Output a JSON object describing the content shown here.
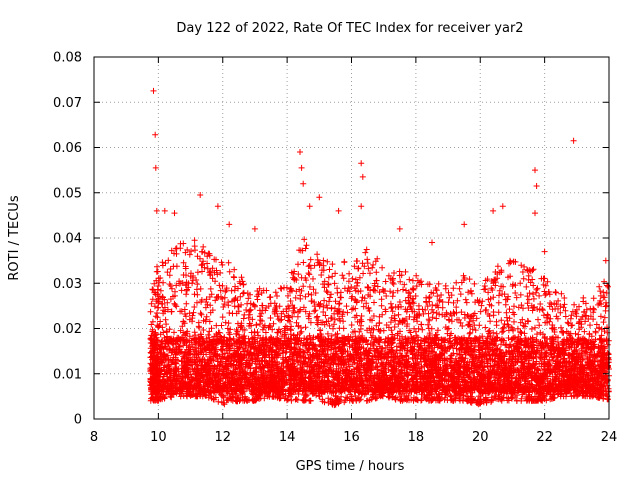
{
  "chart_data": {
    "type": "scatter",
    "title": "Day 122 of 2022, Rate Of TEC Index for receiver yar2",
    "xlabel": "GPS time / hours",
    "ylabel": "ROTI / TECUs",
    "xlim": [
      8,
      24
    ],
    "ylim": [
      0,
      0.08
    ],
    "x_ticks": [
      "8",
      "10",
      "12",
      "14",
      "16",
      "18",
      "20",
      "22",
      "24"
    ],
    "y_ticks": [
      "0",
      "0.01",
      "0.02",
      "0.03",
      "0.04",
      "0.05",
      "0.06",
      "0.07",
      "0.08"
    ],
    "grid": true,
    "marker": "+",
    "color": "#ff0000",
    "series": [
      {
        "name": "ROTI",
        "points": [
          [
            9.85,
            0.0725
          ],
          [
            9.9,
            0.0628
          ],
          [
            9.92,
            0.0555
          ],
          [
            9.95,
            0.046
          ],
          [
            10.2,
            0.046
          ],
          [
            10.5,
            0.0455
          ],
          [
            11.3,
            0.0495
          ],
          [
            11.85,
            0.047
          ],
          [
            12.2,
            0.043
          ],
          [
            13.0,
            0.042
          ],
          [
            14.4,
            0.059
          ],
          [
            14.45,
            0.0555
          ],
          [
            14.5,
            0.052
          ],
          [
            14.7,
            0.047
          ],
          [
            15.0,
            0.049
          ],
          [
            15.6,
            0.046
          ],
          [
            16.3,
            0.0565
          ],
          [
            16.35,
            0.0535
          ],
          [
            16.3,
            0.047
          ],
          [
            17.5,
            0.042
          ],
          [
            18.5,
            0.039
          ],
          [
            19.5,
            0.043
          ],
          [
            20.4,
            0.046
          ],
          [
            20.7,
            0.047
          ],
          [
            21.7,
            0.055
          ],
          [
            21.75,
            0.0515
          ],
          [
            21.7,
            0.0455
          ],
          [
            22.9,
            0.0615
          ],
          [
            22.0,
            0.037
          ],
          [
            23.9,
            0.035
          ]
        ],
        "density_envelope": [
          [
            9.75,
            0.004,
            0.028
          ],
          [
            10.0,
            0.004,
            0.035
          ],
          [
            10.5,
            0.005,
            0.038
          ],
          [
            11.0,
            0.005,
            0.04
          ],
          [
            11.5,
            0.005,
            0.038
          ],
          [
            12.0,
            0.003,
            0.036
          ],
          [
            12.5,
            0.004,
            0.032
          ],
          [
            13.0,
            0.004,
            0.03
          ],
          [
            13.5,
            0.005,
            0.028
          ],
          [
            14.0,
            0.004,
            0.03
          ],
          [
            14.5,
            0.004,
            0.04
          ],
          [
            15.0,
            0.004,
            0.036
          ],
          [
            15.5,
            0.003,
            0.034
          ],
          [
            16.0,
            0.004,
            0.036
          ],
          [
            16.5,
            0.004,
            0.038
          ],
          [
            17.0,
            0.005,
            0.034
          ],
          [
            17.5,
            0.004,
            0.034
          ],
          [
            18.0,
            0.004,
            0.032
          ],
          [
            18.5,
            0.004,
            0.03
          ],
          [
            19.0,
            0.004,
            0.03
          ],
          [
            19.5,
            0.004,
            0.032
          ],
          [
            20.0,
            0.003,
            0.03
          ],
          [
            20.5,
            0.004,
            0.034
          ],
          [
            21.0,
            0.004,
            0.036
          ],
          [
            21.5,
            0.004,
            0.034
          ],
          [
            22.0,
            0.004,
            0.032
          ],
          [
            22.5,
            0.005,
            0.028
          ],
          [
            23.0,
            0.005,
            0.026
          ],
          [
            23.5,
            0.005,
            0.028
          ],
          [
            24.0,
            0.004,
            0.032
          ]
        ]
      }
    ]
  }
}
